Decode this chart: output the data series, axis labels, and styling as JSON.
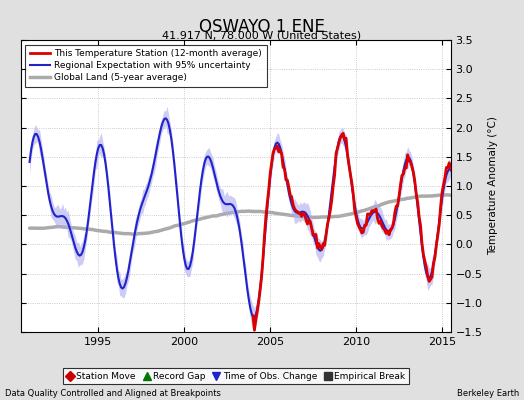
{
  "title": "OSWAYO 1 ENE",
  "subtitle": "41.917 N, 78.000 W (United States)",
  "ylabel": "Temperature Anomaly (°C)",
  "footer_left": "Data Quality Controlled and Aligned at Breakpoints",
  "footer_right": "Berkeley Earth",
  "xlim": [
    1990.5,
    2015.5
  ],
  "ylim": [
    -1.5,
    3.5
  ],
  "yticks": [
    -1.5,
    -1.0,
    -0.5,
    0.0,
    0.5,
    1.0,
    1.5,
    2.0,
    2.5,
    3.0,
    3.5
  ],
  "xticks": [
    1995,
    2000,
    2005,
    2010,
    2015
  ],
  "legend_station_color": "#DD0000",
  "legend_regional_color": "#2222CC",
  "legend_regional_band_color": "#AAAAEE",
  "legend_global_color": "#AAAAAA",
  "legend_station_lw": 2.0,
  "legend_regional_lw": 1.5,
  "legend_global_lw": 2.5,
  "bg_color": "#E0E0E0",
  "plot_bg_color": "#FFFFFF",
  "grid_color": "#BBBBBB",
  "grid_style": ":"
}
